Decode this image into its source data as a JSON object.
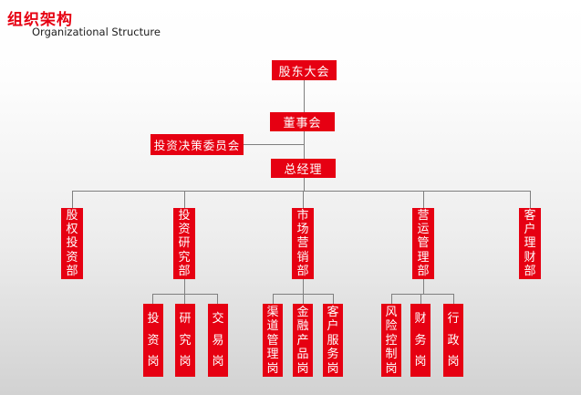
{
  "title": {
    "zh": "组织架构",
    "en": "Organizational Structure"
  },
  "colors": {
    "accent_red": "#e60012",
    "connector_gray": "#7f7f7f",
    "node_text": "#ffffff",
    "background_bottom": "#d2d2d2"
  },
  "org": {
    "shareholders": "股东大会",
    "board": "董事会",
    "committee": "投资决策委员会",
    "general_manager": "总经理",
    "departments": [
      {
        "label": "股权投资部",
        "children": []
      },
      {
        "label": "投资研究部",
        "children": [
          "投资岗",
          "研究岗",
          "交易岗"
        ]
      },
      {
        "label": "市场营销部",
        "children": [
          "渠道管理岗",
          "金融产品岗",
          "客户服务岗"
        ]
      },
      {
        "label": "营运管理部",
        "children": [
          "风险控制岗",
          "财务岗",
          "行政岗"
        ]
      },
      {
        "label": "客户理财部",
        "children": []
      }
    ]
  }
}
